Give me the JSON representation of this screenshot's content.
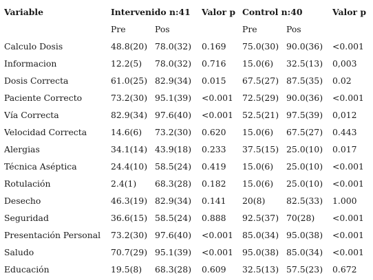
{
  "header": {
    "variable": "Variable",
    "intervenido": "Intervenido n:41",
    "valor_p_1": "Valor p",
    "control": "Control n:40",
    "valor_p_2": "Valor p"
  },
  "subheader": {
    "pre_1": "Pre",
    "pos_1": "Pos",
    "pre_2": "Pre",
    "pos_2": "Pos"
  },
  "rows": [
    {
      "variable": "Calculo Dosis",
      "int_pre": "48.8(20)",
      "int_pos": "78.0(32)",
      "int_p": "0.169",
      "ctrl_pre": "75.0(30)",
      "ctrl_pos": "90.0(36)",
      "ctrl_p": "<0.001"
    },
    {
      "variable": "Informacion",
      "int_pre": "12.2(5)",
      "int_pos": "78.0(32)",
      "int_p": "0.716",
      "ctrl_pre": "15.0(6)",
      "ctrl_pos": "32.5(13)",
      "ctrl_p": "0,003"
    },
    {
      "variable": "Dosis Correcta",
      "int_pre": "61.0(25)",
      "int_pos": "82.9(34)",
      "int_p": "0.015",
      "ctrl_pre": "67.5(27)",
      "ctrl_pos": "87.5(35)",
      "ctrl_p": "0.02"
    },
    {
      "variable": "Paciente Correcto",
      "int_pre": "73.2(30)",
      "int_pos": "95.1(39)",
      "int_p": "<0.001",
      "ctrl_pre": "72.5(29)",
      "ctrl_pos": "90.0(36)",
      "ctrl_p": "<0.001"
    },
    {
      "variable": "Vía Correcta",
      "int_pre": "82.9(34)",
      "int_pos": "97.6(40)",
      "int_p": "<0.001",
      "ctrl_pre": "52.5(21)",
      "ctrl_pos": "97.5(39)",
      "ctrl_p": "0,012"
    },
    {
      "variable": "Velocidad Correcta",
      "int_pre": "14.6(6)",
      "int_pos": "73.2(30)",
      "int_p": "0.620",
      "ctrl_pre": "15.0(6)",
      "ctrl_pos": "67.5(27)",
      "ctrl_p": "0.443"
    },
    {
      "variable": "Alergias",
      "int_pre": "34.1(14)",
      "int_pos": "43.9(18)",
      "int_p": "0.233",
      "ctrl_pre": "37.5(15)",
      "ctrl_pos": "25.0(10)",
      "ctrl_p": "0.017"
    },
    {
      "variable": "Técnica Aséptica",
      "int_pre": "24.4(10)",
      "int_pos": "58.5(24)",
      "int_p": "0.419",
      "ctrl_pre": "15.0(6)",
      "ctrl_pos": "25.0(10)",
      "ctrl_p": "<0.001"
    },
    {
      "variable": "Rotulación",
      "int_pre": "2.4(1)",
      "int_pos": "68.3(28)",
      "int_p": "0.182",
      "ctrl_pre": "15.0(6)",
      "ctrl_pos": "25.0(10)",
      "ctrl_p": "<0.001"
    },
    {
      "variable": "Desecho",
      "int_pre": "46.3(19)",
      "int_pos": "82.9(34)",
      "int_p": "0.141",
      "ctrl_pre": "20(8)",
      "ctrl_pos": "82.5(33)",
      "ctrl_p": "1.000"
    },
    {
      "variable": "Seguridad",
      "int_pre": "36.6(15)",
      "int_pos": "58.5(24)",
      "int_p": "0.888",
      "ctrl_pre": "92.5(37)",
      "ctrl_pos": "70(28)",
      "ctrl_p": "<0.001"
    },
    {
      "variable": "Presentación Personal",
      "int_pre": "73.2(30)",
      "int_pos": "97.6(40)",
      "int_p": "<0.001",
      "ctrl_pre": "85.0(34)",
      "ctrl_pos": "95.0(38)",
      "ctrl_p": "<0.001"
    },
    {
      "variable": "Saludo",
      "int_pre": "70.7(29)",
      "int_pos": "95.1(39)",
      "int_p": "<0.001",
      "ctrl_pre": "95.0(38)",
      "ctrl_pos": "85.0(34)",
      "ctrl_p": "<0.001"
    },
    {
      "variable": "Educación",
      "int_pre": "19.5(8)",
      "int_pos": "68.3(28)",
      "int_p": "0.609",
      "ctrl_pre": "32.5(13)",
      "ctrl_pos": "57.5(23)",
      "ctrl_p": "0.672"
    }
  ]
}
